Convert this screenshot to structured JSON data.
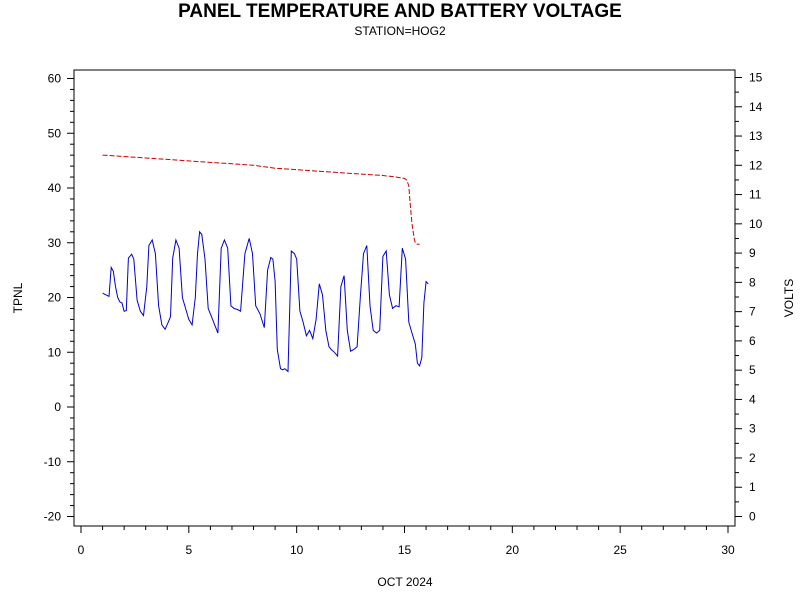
{
  "chart_data": {
    "type": "line",
    "title": "PANEL TEMPERATURE AND BATTERY VOLTAGE",
    "subtitle": "STATION=HOG2",
    "xlabel": "OCT 2024",
    "ylabel_left": "TPNL",
    "ylabel_right": "VOLTS",
    "xlim": [
      0,
      30
    ],
    "ylim_left": [
      -20,
      60
    ],
    "ylim_right": [
      0,
      15
    ],
    "x_ticks": [
      0,
      5,
      10,
      15,
      20,
      25,
      30
    ],
    "y_ticks_left": [
      -20,
      -10,
      0,
      10,
      20,
      30,
      40,
      50,
      60
    ],
    "y_ticks_right": [
      0,
      1,
      2,
      3,
      4,
      5,
      6,
      7,
      8,
      9,
      10,
      11,
      12,
      13,
      14,
      15
    ],
    "grid": false,
    "series": [
      {
        "name": "",
        "axis": "left",
        "color": "#0000cc",
        "style": "solid",
        "x": [
          1.0,
          1.15,
          1.3,
          1.4,
          1.5,
          1.6,
          1.7,
          1.8,
          1.9,
          2.0,
          2.1,
          2.2,
          2.35,
          2.45,
          2.6,
          2.75,
          2.9,
          3.05,
          3.15,
          3.3,
          3.45,
          3.6,
          3.75,
          3.9,
          4.05,
          4.15,
          4.25,
          4.4,
          4.55,
          4.7,
          4.85,
          5.0,
          5.15,
          5.3,
          5.4,
          5.5,
          5.6,
          5.75,
          5.9,
          6.05,
          6.2,
          6.35,
          6.5,
          6.65,
          6.8,
          6.95,
          7.1,
          7.25,
          7.4,
          7.6,
          7.8,
          7.95,
          8.1,
          8.3,
          8.5,
          8.65,
          8.8,
          8.9,
          9.0,
          9.1,
          9.25,
          9.35,
          9.45,
          9.6,
          9.75,
          9.9,
          10.0,
          10.15,
          10.3,
          10.45,
          10.6,
          10.75,
          10.9,
          11.05,
          11.2,
          11.35,
          11.5,
          11.6,
          11.75,
          11.9,
          12.05,
          12.2,
          12.35,
          12.5,
          12.65,
          12.8,
          12.95,
          13.1,
          13.25,
          13.4,
          13.55,
          13.7,
          13.85,
          14.0,
          14.15,
          14.3,
          14.45,
          14.6,
          14.75,
          14.9,
          15.05,
          15.2,
          15.35,
          15.5,
          15.6,
          15.7
        ],
        "values": [
          20.8,
          20.5,
          20.2,
          25.5,
          24.8,
          22.0,
          20.0,
          19.2,
          19.0,
          17.5,
          17.6,
          27.2,
          27.9,
          27.0,
          19.5,
          17.5,
          16.7,
          22.0,
          29.5,
          30.5,
          28.0,
          18.5,
          15.0,
          14.2,
          15.5,
          16.5,
          27.2,
          30.5,
          29.0,
          20.0,
          18.0,
          16.0,
          15.0,
          20.0,
          28.0,
          32.0,
          31.5,
          27.0,
          18.0,
          16.5,
          15.0,
          13.5,
          29.0,
          30.5,
          29.0,
          18.5,
          18.0,
          17.8,
          17.5,
          28.0,
          30.8,
          28.0,
          18.5,
          17.0,
          14.5,
          25.0,
          27.3,
          27.0,
          23.0,
          10.5,
          7.0,
          6.8,
          7.0,
          6.5,
          28.5,
          28.0,
          27.0,
          17.5,
          15.5,
          13.0,
          14.0,
          12.5,
          16.0,
          22.5,
          20.5,
          14.0,
          11.0,
          10.5,
          10.0,
          9.3,
          22.0,
          24.0,
          14.0,
          10.2,
          10.5,
          11.0,
          20.0,
          28.0,
          29.5,
          18.5,
          14.0,
          13.5,
          14.0,
          27.5,
          28.5,
          20.5,
          18.0,
          18.5,
          18.3,
          29.0,
          27.0,
          15.5,
          13.5,
          11.5,
          8.0,
          7.5
        ]
      },
      {
        "name": "",
        "axis": "right",
        "color": "#cc0000",
        "style": "dashed",
        "x": [
          1.0,
          2.0,
          3.0,
          4.0,
          5.0,
          6.0,
          7.0,
          8.0,
          8.5,
          9.0,
          10.0,
          11.0,
          12.0,
          13.0,
          14.0,
          14.6,
          15.0,
          15.1,
          15.2,
          15.25,
          15.35,
          15.45,
          15.5,
          15.6,
          15.7
        ],
        "values": [
          12.35,
          12.3,
          12.25,
          12.2,
          12.15,
          12.1,
          12.05,
          12.0,
          11.95,
          11.9,
          11.85,
          11.8,
          11.75,
          11.7,
          11.65,
          11.6,
          11.55,
          11.5,
          11.3,
          10.8,
          10.0,
          9.5,
          9.35,
          9.3,
          9.3
        ]
      }
    ],
    "series_tail": {
      "x": [
        15.8,
        15.9,
        16.0,
        16.1
      ],
      "values": [
        9.0,
        19.0,
        22.9,
        22.5
      ]
    }
  }
}
